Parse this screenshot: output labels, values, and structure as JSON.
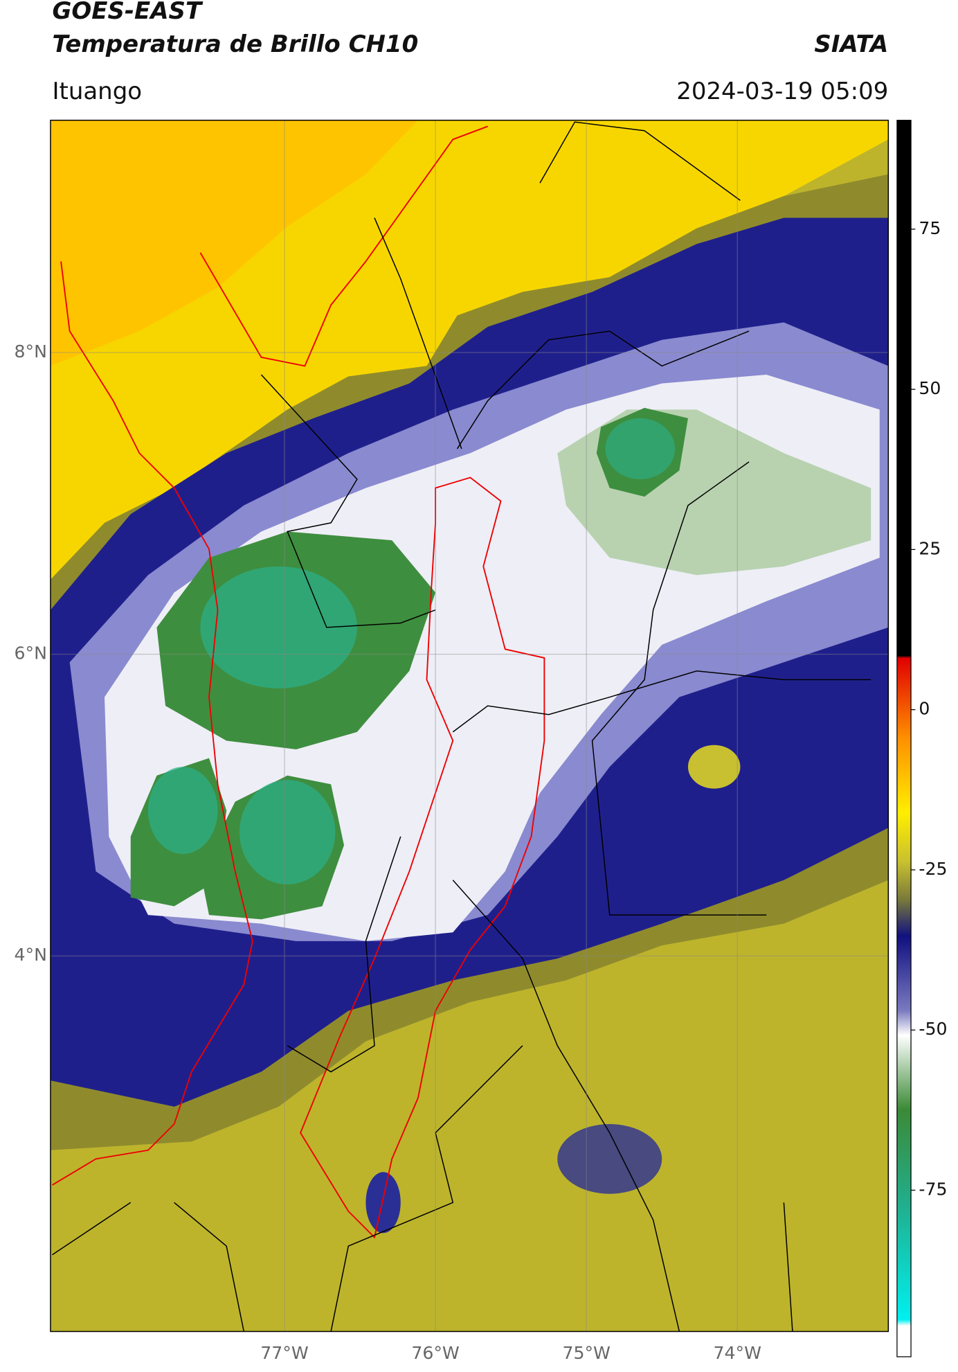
{
  "header": {
    "title": "GOES-EAST",
    "subtitle": "Temperatura de Brillo CH10",
    "brand": "SIATA",
    "location": "Ituango",
    "timestamp": "2024-03-19 05:09"
  },
  "chart_data": {
    "type": "map",
    "xlim": [
      -78.55,
      -73.0
    ],
    "ylim": [
      1.51,
      9.54
    ],
    "xticks": [
      {
        "value": -77,
        "label": "77°W"
      },
      {
        "value": -76,
        "label": "76°W"
      },
      {
        "value": -75,
        "label": "75°W"
      },
      {
        "value": -74,
        "label": "74°W"
      }
    ],
    "yticks": [
      {
        "value": 8,
        "label": "8°N"
      },
      {
        "value": 6,
        "label": "6°N"
      },
      {
        "value": 4,
        "label": "4°N"
      }
    ],
    "grid": true,
    "colorbar": {
      "clim": [
        -101,
        92
      ],
      "ticks": [
        75,
        50,
        25,
        0,
        -25,
        -50,
        -75
      ]
    }
  }
}
